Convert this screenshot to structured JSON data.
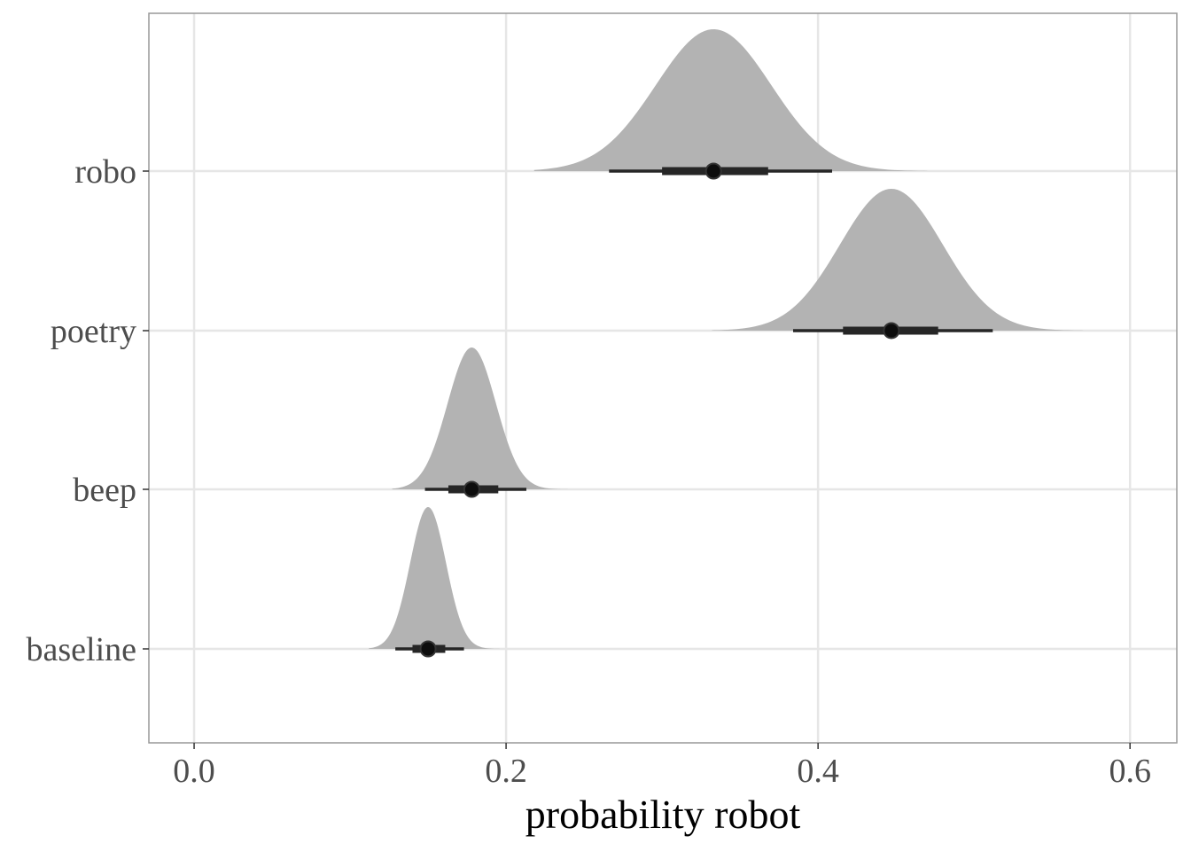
{
  "chart_data": {
    "type": "halfeye",
    "title": "",
    "xlabel": "probability robot",
    "ylabel": "",
    "xlim": [
      -0.029,
      0.63
    ],
    "x_ticks": [
      0.0,
      0.2,
      0.4,
      0.6
    ],
    "x_tick_labels": [
      "0.0",
      "0.2",
      "0.4",
      "0.6"
    ],
    "categories": [
      "baseline",
      "beep",
      "poetry",
      "robo"
    ],
    "series": [
      {
        "category": "baseline",
        "median": 0.15,
        "sd": 0.0115,
        "interval_66": [
          0.14,
          0.161
        ],
        "interval_95": [
          0.129,
          0.173
        ],
        "range": [
          0.112,
          0.199
        ]
      },
      {
        "category": "beep",
        "median": 0.178,
        "sd": 0.0155,
        "interval_66": [
          0.163,
          0.195
        ],
        "interval_95": [
          0.148,
          0.213
        ],
        "range": [
          0.127,
          0.24
        ]
      },
      {
        "category": "poetry",
        "median": 0.447,
        "sd": 0.033,
        "interval_66": [
          0.416,
          0.477
        ],
        "interval_95": [
          0.384,
          0.512
        ],
        "range": [
          0.332,
          0.57
        ]
      },
      {
        "category": "robo",
        "median": 0.333,
        "sd": 0.037,
        "interval_66": [
          0.3,
          0.368
        ],
        "interval_95": [
          0.266,
          0.409
        ],
        "range": [
          0.218,
          0.47
        ]
      }
    ],
    "grid": true,
    "legend": "none",
    "colors": {
      "density": "#b3b3b3",
      "interval": "#262626",
      "point": "#0d0d0d",
      "grid": "#e6e6e6",
      "panel_border": "#999999"
    }
  }
}
